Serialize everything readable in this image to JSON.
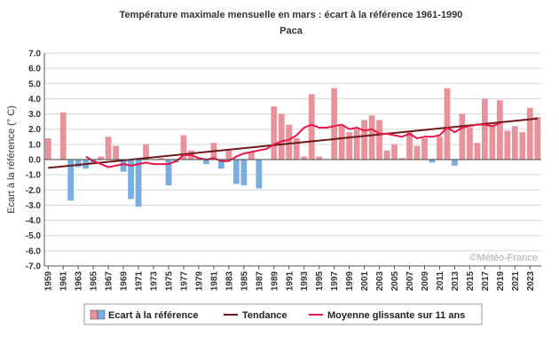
{
  "chart_data": {
    "type": "bar",
    "title": "Température maximale mensuelle en mars : écart à la référence 1961-1990",
    "subtitle": "Paca",
    "ylabel": "Ecart à la référence (° C)",
    "xlabel": "",
    "ylim": [
      -7,
      7
    ],
    "yticks": [
      "7.0",
      "6.0",
      "5.0",
      "4.0",
      "3.0",
      "2.0",
      "1.0",
      "0.0",
      "-1.0",
      "-2.0",
      "-3.0",
      "-4.0",
      "-5.0",
      "-6.0",
      "-7.0"
    ],
    "xtick_labels": [
      "1959",
      "1961",
      "1963",
      "1965",
      "1967",
      "1969",
      "1971",
      "1973",
      "1975",
      "1977",
      "1979",
      "1981",
      "1983",
      "1985",
      "1987",
      "1989",
      "1991",
      "1993",
      "1995",
      "1997",
      "1999",
      "2001",
      "2003",
      "2005",
      "2007",
      "2009",
      "2011",
      "2013",
      "2015",
      "2017",
      "2019",
      "2021",
      "2023"
    ],
    "grid": true,
    "legend_position": "bottom",
    "x": [
      1959,
      1960,
      1961,
      1962,
      1963,
      1964,
      1965,
      1966,
      1967,
      1968,
      1969,
      1970,
      1971,
      1972,
      1973,
      1974,
      1975,
      1976,
      1977,
      1978,
      1979,
      1980,
      1981,
      1982,
      1983,
      1984,
      1985,
      1986,
      1987,
      1988,
      1989,
      1990,
      1991,
      1992,
      1993,
      1994,
      1995,
      1996,
      1997,
      1998,
      1999,
      2000,
      2001,
      2002,
      2003,
      2004,
      2005,
      2006,
      2007,
      2008,
      2009,
      2010,
      2011,
      2012,
      2013,
      2014,
      2015,
      2016,
      2017,
      2018,
      2019,
      2020,
      2021,
      2022,
      2023,
      2024
    ],
    "series": [
      {
        "name": "Ecart à la référence",
        "colors": {
          "positive": "#e8939b",
          "negative": "#7aaee0"
        },
        "values": [
          1.4,
          0.0,
          3.1,
          -2.7,
          -0.5,
          -0.6,
          -0.3,
          0.2,
          1.5,
          0.9,
          -0.8,
          -2.6,
          -3.1,
          1.0,
          0.0,
          0.1,
          -1.7,
          -0.2,
          1.6,
          0.6,
          0.1,
          -0.3,
          1.1,
          -0.6,
          0.7,
          -1.6,
          -1.7,
          0.5,
          -1.9,
          0.0,
          3.5,
          3.0,
          2.3,
          1.4,
          0.2,
          4.3,
          0.2,
          0.0,
          4.7,
          2.2,
          1.8,
          2.0,
          2.6,
          2.9,
          2.6,
          0.6,
          1.0,
          0.1,
          1.8,
          0.9,
          1.4,
          -0.2,
          1.5,
          4.7,
          -0.4,
          3.0,
          2.1,
          1.1,
          4.0,
          2.3,
          3.9,
          1.9,
          2.2,
          1.8,
          3.4,
          2.8
        ]
      },
      {
        "name": "Tendance",
        "color": "#6b1a1a",
        "start": [
          1959,
          -0.55
        ],
        "end": [
          2024,
          2.7
        ]
      },
      {
        "name": "Moyenne glissante sur 11 ans",
        "color": "#e8174a",
        "x": [
          1964,
          1965,
          1966,
          1967,
          1968,
          1969,
          1970,
          1971,
          1972,
          1973,
          1974,
          1975,
          1976,
          1977,
          1978,
          1979,
          1980,
          1981,
          1982,
          1983,
          1984,
          1985,
          1986,
          1987,
          1988,
          1989,
          1990,
          1991,
          1992,
          1993,
          1994,
          1995,
          1996,
          1997,
          1998,
          1999,
          2000,
          2001,
          2002,
          2003,
          2004,
          2005,
          2006,
          2007,
          2008,
          2009,
          2010,
          2011,
          2012,
          2013,
          2014,
          2015,
          2016,
          2017,
          2018,
          2019
        ],
        "values": [
          0.2,
          -0.1,
          -0.3,
          -0.5,
          -0.4,
          -0.3,
          -0.4,
          -0.3,
          -0.2,
          -0.3,
          -0.3,
          -0.3,
          -0.1,
          0.3,
          0.3,
          0.1,
          0.0,
          0.1,
          -0.1,
          -0.1,
          0.2,
          0.4,
          0.5,
          0.6,
          0.7,
          1.0,
          1.2,
          1.3,
          1.6,
          2.1,
          2.3,
          2.1,
          2.1,
          2.2,
          2.3,
          2.0,
          2.1,
          1.9,
          2.0,
          1.7,
          1.7,
          1.6,
          1.5,
          1.7,
          1.4,
          1.5,
          1.5,
          1.6,
          2.1,
          1.8,
          2.1,
          2.2,
          2.3,
          2.3,
          2.2,
          2.4
        ]
      }
    ],
    "credit": "©Météo-France"
  }
}
